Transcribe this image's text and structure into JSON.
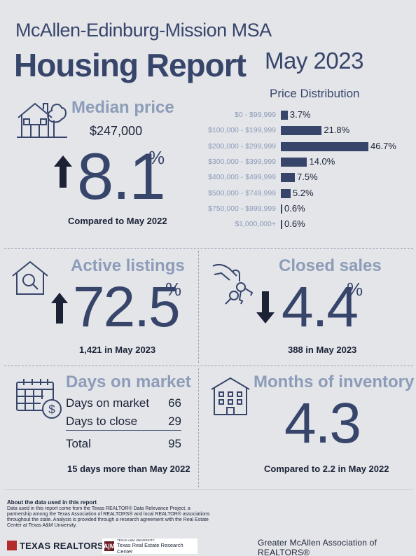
{
  "header": {
    "region": "McAllen-Edinburg-Mission MSA",
    "title": "Housing Report",
    "date": "May 2023"
  },
  "median_price": {
    "icon": "house-with-tree-icon",
    "label": "Median price",
    "value": "$247,000",
    "direction": "up",
    "change_pct": "8.1",
    "pct_sign": "%",
    "comparison": "Compared to May 2022"
  },
  "price_distribution": {
    "title": "Price Distribution",
    "colors": {
      "bar": "#38456b"
    },
    "rows": [
      {
        "category": "$0 - $99,999",
        "value": 3.7,
        "label": "3.7%"
      },
      {
        "category": "$100,000 - $199,999",
        "value": 21.8,
        "label": "21.8%"
      },
      {
        "category": "$200,000 - $299,999",
        "value": 46.7,
        "label": "46.7%"
      },
      {
        "category": "$300,000 - $399,999",
        "value": 14.0,
        "label": "14.0%"
      },
      {
        "category": "$400,000 - $499,999",
        "value": 7.5,
        "label": "7.5%"
      },
      {
        "category": "$500,000 - $749,999",
        "value": 5.2,
        "label": "5.2%"
      },
      {
        "category": "$750,000 - $999,999",
        "value": 0.6,
        "label": "0.6%"
      },
      {
        "category": "$1,000,000+",
        "value": 0.6,
        "label": "0.6%"
      }
    ]
  },
  "chart_data": {
    "type": "bar",
    "title": "Price Distribution",
    "orientation": "horizontal",
    "categories": [
      "$0 - $99,999",
      "$100,000 - $199,999",
      "$200,000 - $299,999",
      "$300,000 - $399,999",
      "$400,000 - $499,999",
      "$500,000 - $749,999",
      "$750,000 - $999,999",
      "$1,000,000+"
    ],
    "values": [
      3.7,
      21.8,
      46.7,
      14.0,
      7.5,
      5.2,
      0.6,
      0.6
    ],
    "value_labels": [
      "3.7%",
      "21.8%",
      "46.7%",
      "14.0%",
      "7.5%",
      "5.2%",
      "0.6%",
      "0.6%"
    ],
    "xlabel": "",
    "ylabel": "",
    "grid": false
  },
  "active_listings": {
    "icon": "house-magnifier-icon",
    "label": "Active listings",
    "direction": "up",
    "change_pct": "72.5",
    "pct_sign": "%",
    "detail": "1,421 in May 2023"
  },
  "closed_sales": {
    "icon": "hand-with-keys-icon",
    "label": "Closed sales",
    "direction": "down",
    "change_pct": "4.4",
    "pct_sign": "%",
    "detail": "388 in May 2023"
  },
  "days_on_market": {
    "icon": "calendar-dollar-icon",
    "label": "Days on market",
    "rows": [
      {
        "key": "Days on market",
        "value": "66"
      },
      {
        "key": "Days to close",
        "value": "29"
      }
    ],
    "total": {
      "key": "Total",
      "value": "95"
    },
    "comparison": "15 days more than May 2022"
  },
  "months_of_inventory": {
    "icon": "apartment-building-icon",
    "label": "Months of inventory",
    "value": "4.3",
    "comparison": "Compared to 2.2 in May 2022"
  },
  "footer": {
    "about_title": "About the data used in this report",
    "about_text": "Data used in this report come from the Texas REALTOR® Data Relevance Project, a partnership among the Texas Association of REALTORS® and local REALTOR® associations throughout the state. Analysis is provided through a research agreement with the Real Estate Center at Texas A&M University.",
    "logo_texas_realtors": "TEXAS REALTORS",
    "logo_trerc_small": "TEXAS A&M UNIVERSITY",
    "logo_trerc_mark": "A|M",
    "logo_trerc": "Texas Real Estate Research Center",
    "association": "Greater McAllen Association of REALTORS®"
  }
}
